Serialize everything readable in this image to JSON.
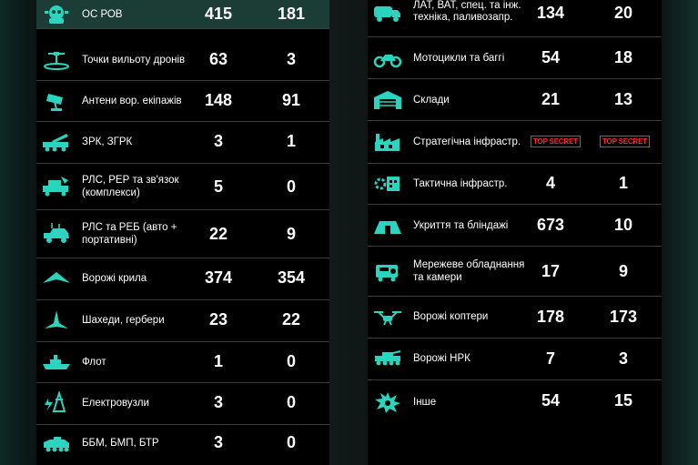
{
  "colors": {
    "accent": "#2ad4be",
    "secret": "#ff2a2a",
    "highlight_row": "#1b3d36"
  },
  "left_rows": [
    {
      "icon": "air-defense-icon",
      "label": "ОС РОВ",
      "v1": "415",
      "v2": "181"
    },
    {
      "icon": "drone-launch-site-icon",
      "label": "Точки вильоту дронів",
      "v1": "63",
      "v2": "3"
    },
    {
      "icon": "antenna-icon",
      "label": "Антени вор. екіпажів",
      "v1": "148",
      "v2": "91"
    },
    {
      "icon": "sam-launcher-icon",
      "label": "ЗРК, ЗГРК",
      "v1": "3",
      "v2": "1"
    },
    {
      "icon": "radar-truck-icon",
      "label": "РЛС, РЕР та зв'язок (комплекси)",
      "v1": "5",
      "v2": "0"
    },
    {
      "icon": "ew-vehicle-icon",
      "label": "РЛС та РЕБ (авто + портативні)",
      "v1": "22",
      "v2": "9"
    },
    {
      "icon": "fixed-wing-drone-icon",
      "label": "Ворожі крила",
      "v1": "374",
      "v2": "354"
    },
    {
      "icon": "shahed-drone-icon",
      "label": "Шахеди, гербери",
      "v1": "23",
      "v2": "22"
    },
    {
      "icon": "ship-icon",
      "label": "Флот",
      "v1": "1",
      "v2": "0"
    },
    {
      "icon": "power-station-icon",
      "label": "Електровузли",
      "v1": "3",
      "v2": "0"
    },
    {
      "icon": "apc-icon",
      "label": "ББМ, БМП, БТР",
      "v1": "3",
      "v2": "0"
    }
  ],
  "right_rows": [
    {
      "icon": "truck-icon",
      "label": "ЛАТ, ВАТ, спец. та інж. техніка, паливозапр.",
      "v1": "134",
      "v2": "20"
    },
    {
      "icon": "motorcycle-icon",
      "label": "Мотоцикли та баггі",
      "v1": "54",
      "v2": "18"
    },
    {
      "icon": "warehouse-icon",
      "label": "Склади",
      "v1": "21",
      "v2": "13"
    },
    {
      "icon": "factory-icon",
      "label": "Стратегічна інфрастр.",
      "v1": "TOP SECRET",
      "v2": "TOP SECRET",
      "secret": true
    },
    {
      "icon": "tactical-infrastructure-icon",
      "label": "Тактична інфрастр.",
      "v1": "4",
      "v2": "1"
    },
    {
      "icon": "shelter-icon",
      "label": "Укриття та бліндажі",
      "v1": "673",
      "v2": "10"
    },
    {
      "icon": "camera-equipment-icon",
      "label": "Мережеве обладнання та камери",
      "v1": "17",
      "v2": "9"
    },
    {
      "icon": "quadcopter-icon",
      "label": "Ворожі коптери",
      "v1": "178",
      "v2": "173"
    },
    {
      "icon": "ugv-icon",
      "label": "Ворожі НРК",
      "v1": "7",
      "v2": "3"
    },
    {
      "icon": "explosion-icon",
      "label": "Інше",
      "v1": "54",
      "v2": "15"
    }
  ]
}
